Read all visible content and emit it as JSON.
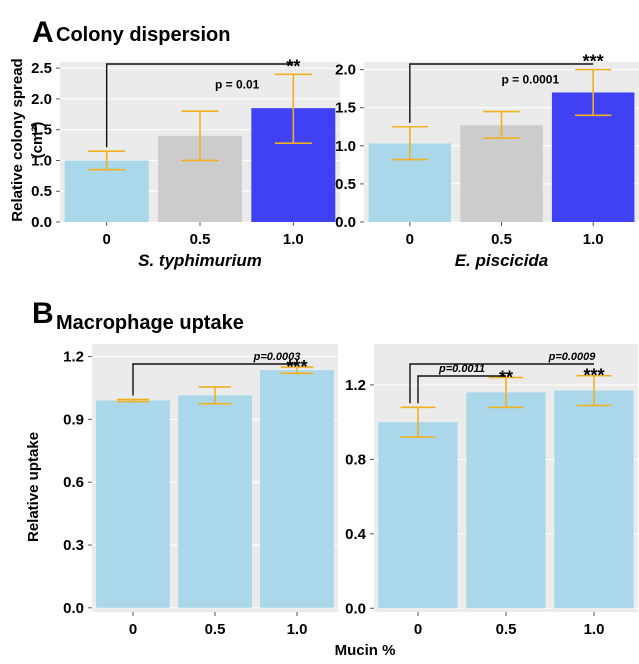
{
  "panels": {
    "A": {
      "letter": "A",
      "title": "Colony dispersion"
    },
    "B": {
      "letter": "B",
      "title": "Macrophage uptake"
    }
  },
  "shared": {
    "ylabel_A": "Relative colony spread",
    "ylabel_A_unit": "(cm²)",
    "ylabel_B": "Relative uptake",
    "xlabel_B": "Mucin %"
  },
  "colors": {
    "control": "#aad8ea",
    "mid": "#cccccc",
    "high": "#4040f5",
    "error": "#f0b020",
    "panel_bg": "#ebebeb",
    "grid": "#ffffff"
  },
  "chart_data": [
    {
      "type": "bar",
      "panel": "A-left",
      "title": "",
      "xlabel": "S. typhimurium",
      "ylabel": "Relative colony spread (cm²)",
      "categories": [
        "0",
        "0.5",
        "1.0"
      ],
      "values": [
        1.0,
        1.4,
        1.85
      ],
      "error_low": [
        0.85,
        1.0,
        1.28
      ],
      "error_high": [
        1.15,
        1.8,
        2.4
      ],
      "ylim": [
        0,
        2.6
      ],
      "yticks": [
        "0.0",
        "0.5",
        "1.0",
        "1.5",
        "2.0",
        "2.5"
      ],
      "colors": [
        "#aad8ea",
        "#cccccc",
        "#4040f5"
      ],
      "significance": [
        {
          "from": "0",
          "to": "1.0",
          "stars": "**",
          "pvalue": "p = 0.01"
        }
      ]
    },
    {
      "type": "bar",
      "panel": "A-right",
      "title": "",
      "xlabel": "E. piscicida",
      "ylabel": "",
      "categories": [
        "0",
        "0.5",
        "1.0"
      ],
      "values": [
        1.03,
        1.27,
        1.7
      ],
      "error_low": [
        0.82,
        1.1,
        1.4
      ],
      "error_high": [
        1.25,
        1.45,
        2.0
      ],
      "ylim": [
        0,
        2.1
      ],
      "yticks": [
        "0.0",
        "0.5",
        "1.0",
        "1.5",
        "2.0"
      ],
      "colors": [
        "#aad8ea",
        "#cccccc",
        "#4040f5"
      ],
      "significance": [
        {
          "from": "0",
          "to": "1.0",
          "stars": "***",
          "pvalue": "p = 0.0001"
        }
      ]
    },
    {
      "type": "bar",
      "panel": "B-left",
      "title": "",
      "xlabel": "",
      "ylabel": "Relative uptake",
      "categories": [
        "0",
        "0.5",
        "1.0"
      ],
      "values": [
        0.99,
        1.015,
        1.135
      ],
      "error_low": [
        0.985,
        0.975,
        1.12
      ],
      "error_high": [
        0.995,
        1.055,
        1.15
      ],
      "ylim": [
        -0.02,
        1.26
      ],
      "yticks": [
        "0.0",
        "0.3",
        "0.6",
        "0.9",
        "1.2"
      ],
      "colors": [
        "#aad8ea",
        "#aad8ea",
        "#aad8ea"
      ],
      "significance": [
        {
          "from": "0",
          "to": "1.0",
          "stars": "***",
          "pvalue": "p=0.0003"
        }
      ]
    },
    {
      "type": "bar",
      "panel": "B-right",
      "title": "",
      "xlabel": "",
      "ylabel": "",
      "categories": [
        "0",
        "0.5",
        "1.0"
      ],
      "values": [
        1.0,
        1.16,
        1.17
      ],
      "error_low": [
        0.92,
        1.08,
        1.09
      ],
      "error_high": [
        1.08,
        1.24,
        1.25
      ],
      "ylim": [
        -0.02,
        1.42
      ],
      "yticks": [
        "0.0",
        "0.4",
        "0.8",
        "1.2"
      ],
      "colors": [
        "#aad8ea",
        "#aad8ea",
        "#aad8ea"
      ],
      "significance": [
        {
          "from": "0",
          "to": "0.5",
          "stars": "**",
          "pvalue": "p=0.0011"
        },
        {
          "from": "0",
          "to": "1.0",
          "stars": "***",
          "pvalue": "p=0.0009"
        }
      ]
    }
  ]
}
